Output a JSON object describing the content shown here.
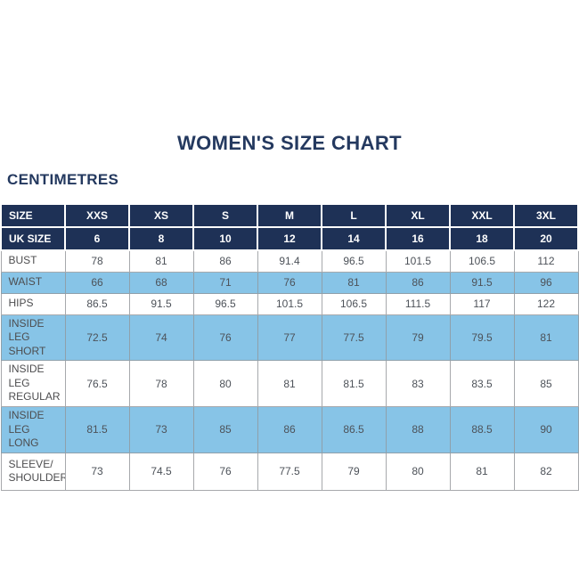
{
  "page": {
    "title": "WOMEN'S SIZE CHART",
    "unit_label": "CENTIMETRES"
  },
  "colors": {
    "header_navy": "#1e3156",
    "title_navy": "#24395f",
    "row_blue": "#87c4e7",
    "cell_text": "#4d5259",
    "border_gray": "#a7a9ac"
  },
  "chart_data": {
    "type": "table",
    "title": "WOMEN'S SIZE CHART",
    "units": "CENTIMETRES",
    "header_rows": [
      {
        "label": "SIZE",
        "values": [
          "XXS",
          "XS",
          "S",
          "M",
          "L",
          "XL",
          "XXL",
          "3XL"
        ]
      },
      {
        "label": "UK SIZE",
        "values": [
          "6",
          "8",
          "10",
          "12",
          "14",
          "16",
          "18",
          "20"
        ]
      }
    ],
    "rows": [
      {
        "label": "BUST",
        "shaded": false,
        "values": [
          78,
          81,
          86,
          91.4,
          96.5,
          101.5,
          106.5,
          112
        ]
      },
      {
        "label": "WAIST",
        "shaded": true,
        "values": [
          66,
          68,
          71,
          76,
          81,
          86,
          91.5,
          96
        ]
      },
      {
        "label": "HIPS",
        "shaded": false,
        "values": [
          86.5,
          91.5,
          96.5,
          101.5,
          106.5,
          111.5,
          117,
          122
        ]
      },
      {
        "label": "INSIDE LEG\nSHORT",
        "shaded": true,
        "values": [
          72.5,
          74,
          76,
          77,
          77.5,
          79,
          79.5,
          81
        ]
      },
      {
        "label": "INSIDE LEG\nREGULAR",
        "shaded": false,
        "values": [
          76.5,
          78,
          80,
          81,
          81.5,
          83,
          83.5,
          85
        ]
      },
      {
        "label": "INSIDE LEG\nLONG",
        "shaded": true,
        "values": [
          81.5,
          73,
          85,
          86,
          86.5,
          88,
          88.5,
          90
        ]
      },
      {
        "label": "SLEEVE/\nSHOULDER",
        "shaded": false,
        "values": [
          73,
          74.5,
          76,
          77.5,
          79,
          80,
          81,
          82
        ]
      }
    ]
  }
}
